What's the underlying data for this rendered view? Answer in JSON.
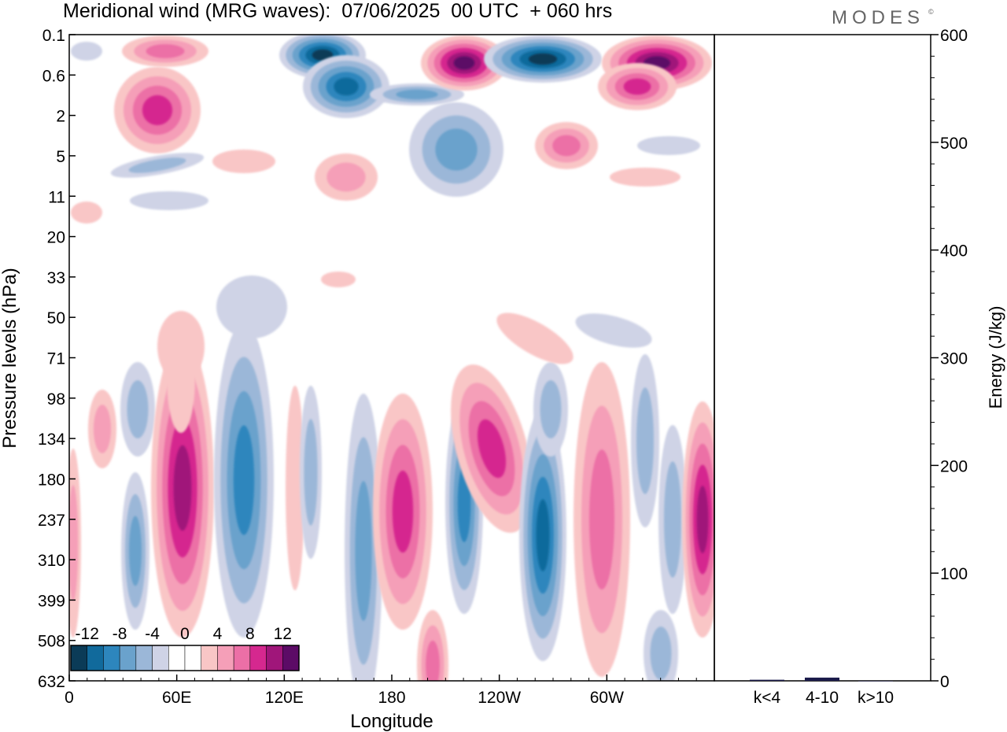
{
  "title": "Meridional wind (MRG waves):  07/06/2025  00 UTC  + 060 hrs",
  "brand": "MODES",
  "brand_mark": "©",
  "chart_data": [
    {
      "type": "heatmap",
      "title": "Meridional wind (MRG waves):  07/06/2025  00 UTC  + 060 hrs",
      "xlabel": "Longitude",
      "ylabel": "Pressure levels (hPa)",
      "x_ticks": [
        "0",
        "60E",
        "120E",
        "180",
        "120W",
        "60W"
      ],
      "x_tick_values": [
        0,
        60,
        120,
        180,
        240,
        300
      ],
      "xlim": [
        0,
        360
      ],
      "y_ticks": [
        "0.1",
        "0.6",
        "2",
        "5",
        "11",
        "20",
        "33",
        "50",
        "71",
        "98",
        "134",
        "180",
        "237",
        "310",
        "399",
        "508",
        "632"
      ],
      "colorbar": {
        "labels": [
          "-12",
          "-8",
          "-4",
          "0",
          "4",
          "8",
          "12"
        ],
        "colors": [
          "#0b3b57",
          "#116a9c",
          "#2d86bd",
          "#6aa2cc",
          "#9bb7d8",
          "#cfd3e6",
          "#ffffff",
          "#ffffff",
          "#f9c6c6",
          "#f59fb8",
          "#ec6fa6",
          "#d5288f",
          "#a0167a",
          "#5c0b66"
        ]
      },
      "colors": {
        "negative_strong": "#0b3b57",
        "negative": "#2d86bd",
        "negative_weak": "#cfd3e6",
        "positive_weak": "#f9c6c6",
        "positive": "#ec6fa6",
        "positive_strong": "#5c0b66"
      }
    },
    {
      "type": "bar",
      "ylabel": "Energy (J/kg)",
      "categories": [
        "k<4",
        "4-10",
        "k>10"
      ],
      "values": [
        1,
        3,
        0
      ],
      "ylim": [
        0,
        600
      ],
      "y_ticks": [
        "0",
        "100",
        "200",
        "300",
        "400",
        "500",
        "600"
      ],
      "y_tick_values": [
        0,
        100,
        200,
        300,
        400,
        500,
        600
      ],
      "colors": [
        "#1a1a4a",
        "#1a1a4a",
        "#1a1a4a"
      ]
    }
  ]
}
